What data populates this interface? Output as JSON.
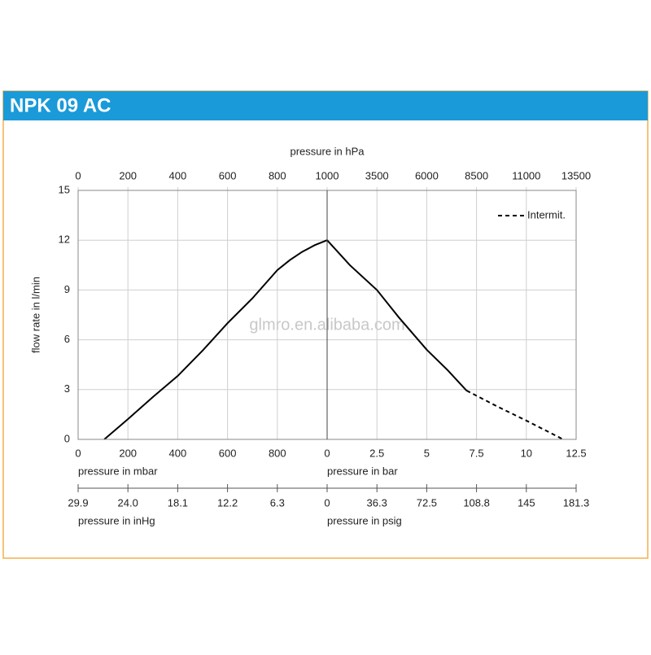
{
  "header": {
    "title": "NPK 09 AC"
  },
  "watermark": "glmro.en.alibaba.com",
  "chart_data": [
    {
      "type": "line",
      "ylabel": "flow rate in l/min",
      "ylim": [
        0,
        15
      ],
      "yticks": [
        0,
        3,
        6,
        9,
        12,
        15
      ],
      "grid": true,
      "xlim": [
        0,
        1000
      ],
      "x2label": "pressure in hPa",
      "x2ticks": [
        0,
        200,
        400,
        600,
        800,
        1000
      ],
      "xlabel": "pressure in mbar",
      "xticks": [
        0,
        200,
        400,
        600,
        800
      ],
      "x3label": "pressure in inHg",
      "x3ticks": [
        {
          "value": 0,
          "label": "29.9"
        },
        {
          "value": 200,
          "label": "24.0"
        },
        {
          "value": 400,
          "label": "18.1"
        },
        {
          "value": 600,
          "label": "12.2"
        },
        {
          "value": 800,
          "label": "6.3"
        }
      ],
      "series": [
        {
          "color": "#000000",
          "dashed": false,
          "x": [
            105,
            200,
            300,
            400,
            500,
            600,
            700,
            800,
            850,
            900,
            950,
            1000
          ],
          "values": [
            0,
            1.22,
            2.55,
            3.82,
            5.35,
            7.0,
            8.5,
            10.2,
            10.8,
            11.3,
            11.7,
            12.0
          ]
        }
      ]
    },
    {
      "type": "line",
      "xlim": [
        0,
        12.5
      ],
      "x2ticks": [
        {
          "value": 2.5,
          "label": "3500"
        },
        {
          "value": 5,
          "label": "6000"
        },
        {
          "value": 7.5,
          "label": "8500"
        },
        {
          "value": 10,
          "label": "11000"
        },
        {
          "value": 12.5,
          "label": "13500"
        }
      ],
      "xlabel": "pressure in bar",
      "xticks": [
        0,
        2.5,
        5,
        7.5,
        10,
        12.5
      ],
      "x3label": "pressure in psig",
      "x3ticks": [
        0,
        {
          "value": 2.5,
          "label": "36.3"
        },
        {
          "value": 5,
          "label": "72.5"
        },
        {
          "value": 7.5,
          "label": "108.8"
        },
        {
          "value": 10,
          "label": "145"
        },
        {
          "value": 12.5,
          "label": "181.3"
        }
      ],
      "legend": "upper right",
      "series": [
        {
          "color": "#000000",
          "dashed": false,
          "x": [
            0,
            1.14,
            2.5,
            3.6,
            5.0,
            6.05,
            7.0
          ],
          "values": [
            12.0,
            10.5,
            9.0,
            7.35,
            5.4,
            4.17,
            2.94
          ]
        },
        {
          "name": "Intermit.",
          "color": "#000000",
          "dashed": true,
          "x": [
            7.0,
            8.58,
            10,
            11.85
          ],
          "values": [
            2.94,
            1.96,
            1.13,
            0
          ]
        }
      ]
    }
  ]
}
